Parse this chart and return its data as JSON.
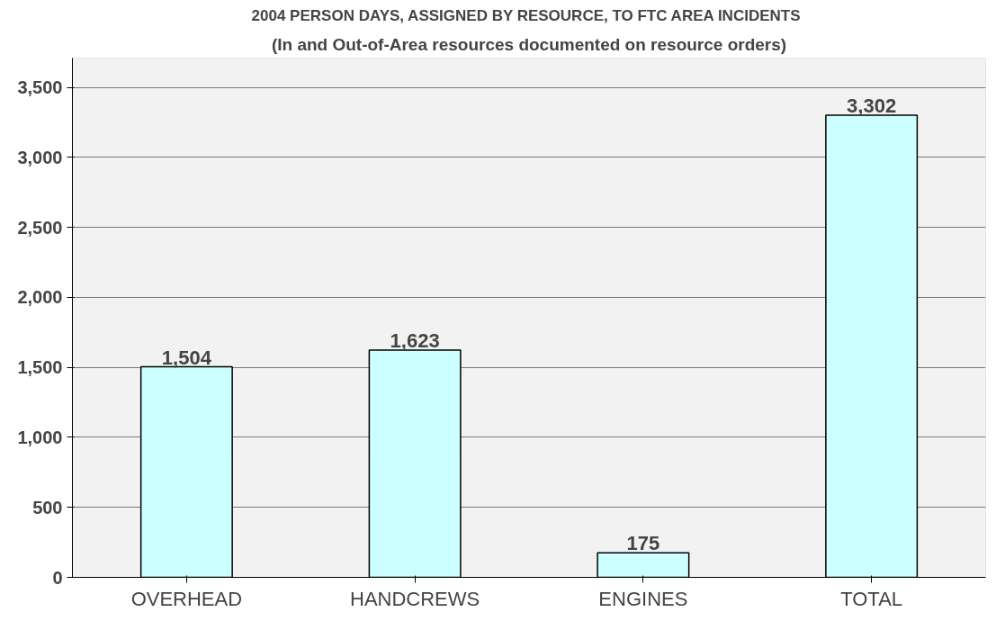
{
  "chart_data": {
    "type": "bar",
    "title": "2004 PERSON DAYS, ASSIGNED  BY RESOURCE, TO FTC AREA INCIDENTS",
    "subtitle": "(In and Out-of-Area resources documented on resource orders)",
    "categories": [
      "OVERHEAD",
      "HANDCREWS",
      "ENGINES",
      "TOTAL"
    ],
    "values": [
      1504,
      1623,
      175,
      3302
    ],
    "color": "#ccffff",
    "value_labels": [
      "1,504",
      "1,623",
      "175",
      "3,302"
    ],
    "ylim": [
      0,
      3500
    ],
    "yticks": [
      {
        "value": 0,
        "label": "0"
      },
      {
        "value": 500,
        "label": "500"
      },
      {
        "value": 1000,
        "label": "1,000"
      },
      {
        "value": 1500,
        "label": "1,500"
      },
      {
        "value": 2000,
        "label": "2,000"
      },
      {
        "value": 2500,
        "label": "2,500"
      },
      {
        "value": 3000,
        "label": "3,000"
      },
      {
        "value": 3500,
        "label": "3,500"
      }
    ],
    "grid": "y"
  }
}
